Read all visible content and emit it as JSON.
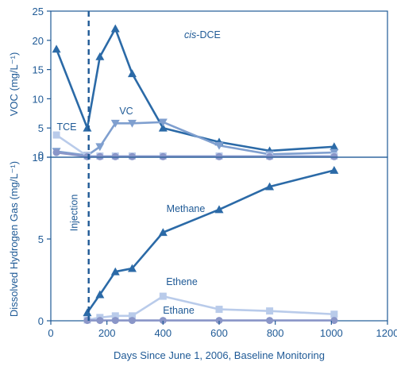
{
  "chart_data": [
    {
      "type": "line",
      "panel": "top",
      "ylabel": "VOC (mg/L⁻¹)",
      "xlim": [
        0,
        1200
      ],
      "ylim": [
        0,
        25
      ],
      "yticks": [
        0,
        5,
        10,
        15,
        20,
        25
      ],
      "grid": false,
      "series": [
        {
          "name": "cis-DCE",
          "name_italic_part": "cis",
          "name_rest": "-DCE",
          "color": "#2b6aa7",
          "marker": "triangle-up",
          "x": [
            20,
            130,
            175,
            230,
            290,
            400,
            600,
            780,
            1010
          ],
          "y": [
            18.5,
            5.0,
            17.2,
            22.0,
            14.3,
            5.0,
            2.6,
            1.1,
            1.8
          ]
        },
        {
          "name": "VC",
          "color": "#7f9fcf",
          "marker": "triangle-down",
          "x": [
            20,
            130,
            175,
            230,
            290,
            400,
            600,
            780,
            1010
          ],
          "y": [
            1.0,
            0.3,
            1.8,
            5.8,
            5.8,
            6.0,
            2.0,
            0.5,
            0.8
          ]
        },
        {
          "name": "TCE",
          "color": "#b9cbea",
          "marker": "square",
          "x": [
            20,
            130,
            175,
            230,
            290,
            400,
            600,
            780,
            1010
          ],
          "y": [
            3.8,
            0.2,
            0.2,
            0.2,
            0.2,
            0.2,
            0.2,
            0.2,
            0.2
          ]
        },
        {
          "name": "",
          "color": "#8a96c8",
          "marker": "circle",
          "x": [
            20,
            130,
            175,
            230,
            290,
            400,
            600,
            780,
            1010
          ],
          "y": [
            0.8,
            0.1,
            0.1,
            0.1,
            0.1,
            0.1,
            0.1,
            0.1,
            0.1
          ]
        }
      ]
    },
    {
      "type": "line",
      "panel": "bottom",
      "xlabel": "Days Since June 1, 2006, Baseline Monitoring",
      "ylabel": "Dissolved Hydrogen Gas (mg/L⁻¹)",
      "xlim": [
        0,
        1200
      ],
      "ylim": [
        0,
        10
      ],
      "xticks": [
        0,
        200,
        400,
        600,
        800,
        1000,
        1200
      ],
      "yticks": [
        0,
        5,
        10
      ],
      "grid": false,
      "series": [
        {
          "name": "Methane",
          "color": "#2b6aa7",
          "marker": "triangle-up",
          "x": [
            130,
            175,
            230,
            290,
            400,
            600,
            780,
            1010
          ],
          "y": [
            0.5,
            1.6,
            3.0,
            3.2,
            5.4,
            6.8,
            8.2,
            9.2
          ]
        },
        {
          "name": "Ethene",
          "color": "#b9cbea",
          "marker": "square",
          "x": [
            130,
            175,
            230,
            290,
            400,
            600,
            780,
            1010
          ],
          "y": [
            0.05,
            0.2,
            0.3,
            0.3,
            1.5,
            0.7,
            0.6,
            0.4
          ]
        },
        {
          "name": "Ethane",
          "color": "#8a96c8",
          "marker": "circle",
          "x": [
            130,
            175,
            230,
            290,
            400,
            600,
            780,
            1010
          ],
          "y": [
            0.02,
            0.02,
            0.02,
            0.02,
            0.02,
            0.02,
            0.02,
            0.02
          ]
        }
      ]
    }
  ],
  "annotations": {
    "injection_label": "Injection",
    "injection_day": 135,
    "injection_line_color": "#1f5a96"
  },
  "colors": {
    "axis": "#1f5a96",
    "text": "#1f5a96"
  }
}
